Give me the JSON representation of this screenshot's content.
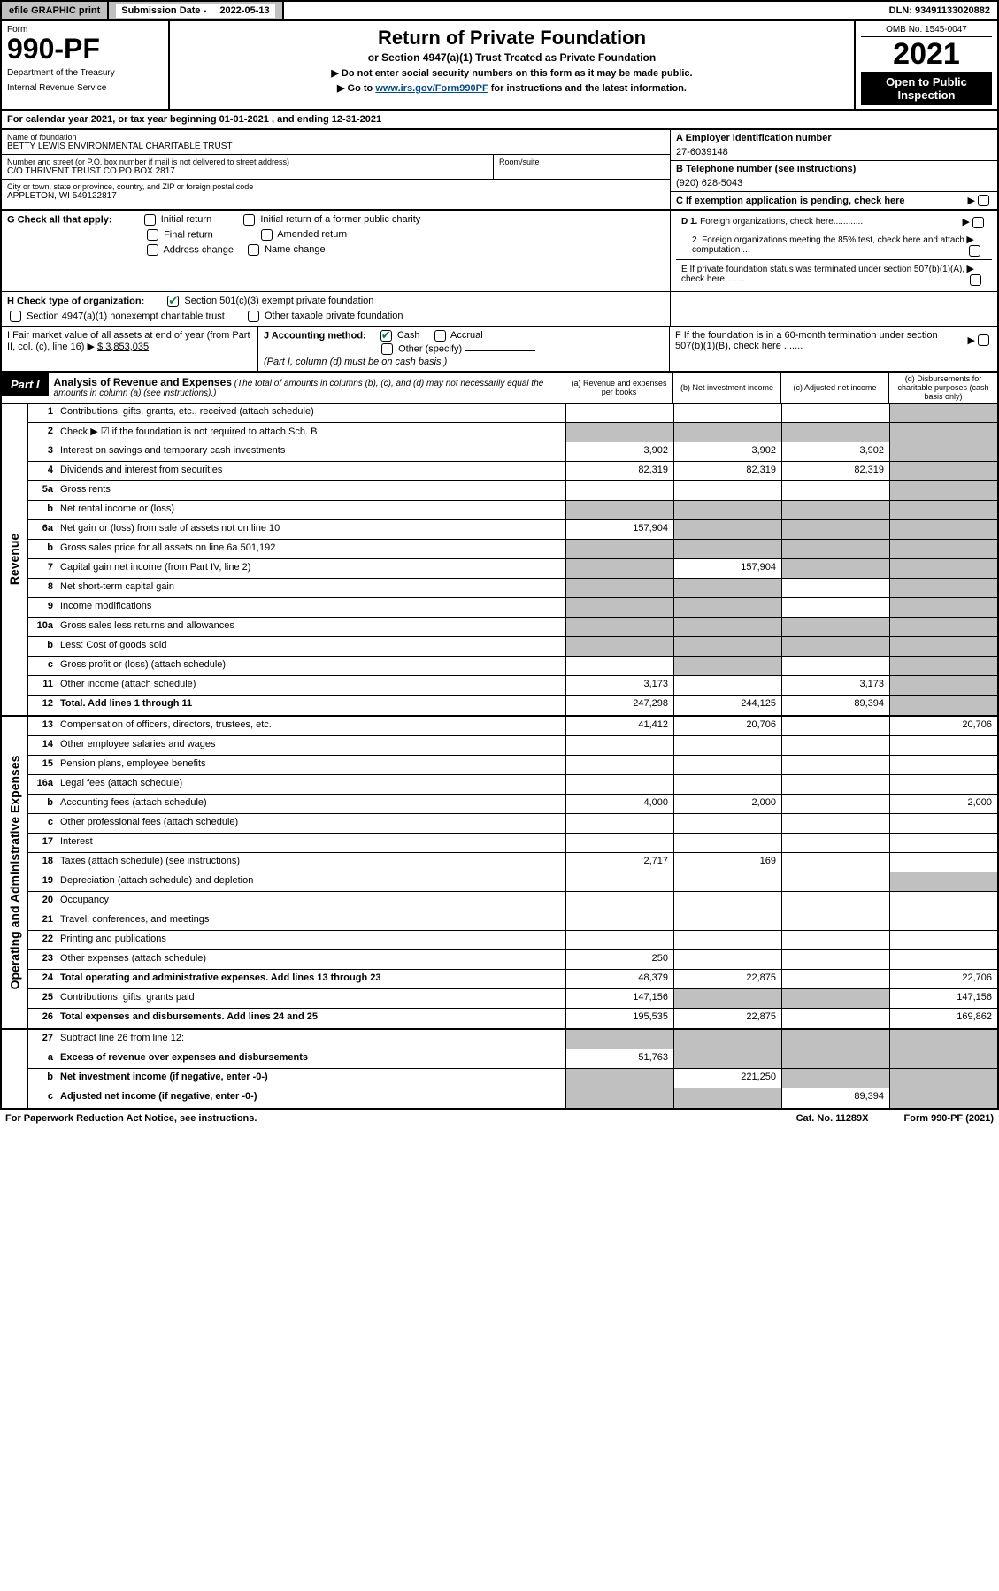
{
  "top_bar": {
    "efile": "efile GRAPHIC print",
    "submission_label": "Submission Date - ",
    "submission_date": "2022-05-13",
    "dln": "DLN: 93491133020882"
  },
  "header": {
    "form_label": "Form",
    "form_number": "990-PF",
    "dept1": "Department of the Treasury",
    "dept2": "Internal Revenue Service",
    "title": "Return of Private Foundation",
    "subtitle": "or Section 4947(a)(1) Trust Treated as Private Foundation",
    "note1": "▶ Do not enter social security numbers on this form as it may be made public.",
    "note2_pre": "▶ Go to ",
    "note2_link": "www.irs.gov/Form990PF",
    "note2_post": " for instructions and the latest information.",
    "omb": "OMB No. 1545-0047",
    "year": "2021",
    "open": "Open to Public Inspection"
  },
  "cal_year": "For calendar year 2021, or tax year beginning 01-01-2021            , and ending 12-31-2021",
  "info": {
    "name_label": "Name of foundation",
    "name": "BETTY LEWIS ENVIRONMENTAL CHARITABLE TRUST",
    "addr_label": "Number and street (or P.O. box number if mail is not delivered to street address)",
    "addr": "C/O THRIVENT TRUST CO PO BOX 2817",
    "room_label": "Room/suite",
    "city_label": "City or town, state or province, country, and ZIP or foreign postal code",
    "city": "APPLETON, WI  549122817",
    "a_label": "A Employer identification number",
    "a_val": "27-6039148",
    "b_label": "B Telephone number (see instructions)",
    "b_val": "(920) 628-5043",
    "c_label": "C If exemption application is pending, check here",
    "d1": "D 1. Foreign organizations, check here............",
    "d2": "2. Foreign organizations meeting the 85% test, check here and attach computation ...",
    "e_label": "E  If private foundation status was terminated under section 507(b)(1)(A), check here .......",
    "f_label": "F  If the foundation is in a 60-month termination under section 507(b)(1)(B), check here ......."
  },
  "g": {
    "label": "G Check all that apply:",
    "initial": "Initial return",
    "initial_former": "Initial return of a former public charity",
    "final": "Final return",
    "amended": "Amended return",
    "addr_change": "Address change",
    "name_change": "Name change"
  },
  "h": {
    "label": "H Check type of organization:",
    "opt1": "Section 501(c)(3) exempt private foundation",
    "opt2": "Section 4947(a)(1) nonexempt charitable trust",
    "opt3": "Other taxable private foundation"
  },
  "i": {
    "label": "I Fair market value of all assets at end of year (from Part II, col. (c), line 16)",
    "val": "$  3,853,035"
  },
  "j": {
    "label": "J Accounting method:",
    "cash": "Cash",
    "accrual": "Accrual",
    "other": "Other (specify)",
    "note": "(Part I, column (d) must be on cash basis.)"
  },
  "part1": {
    "label": "Part I",
    "title": "Analysis of Revenue and Expenses",
    "note": "(The total of amounts in columns (b), (c), and (d) may not necessarily equal the amounts in column (a) (see instructions).)",
    "col_a": "(a)   Revenue and expenses per books",
    "col_b": "(b)   Net investment income",
    "col_c": "(c)   Adjusted net income",
    "col_d": "(d)   Disbursements for charitable purposes (cash basis only)"
  },
  "sections": {
    "revenue": "Revenue",
    "expenses": "Operating and Administrative Expenses"
  },
  "rows": {
    "r1": {
      "num": "1",
      "desc": "Contributions, gifts, grants, etc., received (attach schedule)",
      "a": "",
      "b": "",
      "c": "",
      "d": "",
      "shade": [
        "d"
      ]
    },
    "r2": {
      "num": "2",
      "desc": "Check ▶ ☑ if the foundation is not required to attach Sch. B",
      "a": "",
      "b": "",
      "c": "",
      "d": "",
      "shade": [
        "a",
        "b",
        "c",
        "d"
      ],
      "nob": true
    },
    "r3": {
      "num": "3",
      "desc": "Interest on savings and temporary cash investments",
      "a": "3,902",
      "b": "3,902",
      "c": "3,902",
      "d": "",
      "shade": [
        "d"
      ]
    },
    "r4": {
      "num": "4",
      "desc": "Dividends and interest from securities",
      "a": "82,319",
      "b": "82,319",
      "c": "82,319",
      "d": "",
      "shade": [
        "d"
      ]
    },
    "r5a": {
      "num": "5a",
      "desc": "Gross rents",
      "a": "",
      "b": "",
      "c": "",
      "d": "",
      "shade": [
        "d"
      ]
    },
    "r5b": {
      "num": "b",
      "desc": "Net rental income or (loss)",
      "a": "",
      "b": "",
      "c": "",
      "d": "",
      "shade": [
        "a",
        "b",
        "c",
        "d"
      ]
    },
    "r6a": {
      "num": "6a",
      "desc": "Net gain or (loss) from sale of assets not on line 10",
      "a": "157,904",
      "b": "",
      "c": "",
      "d": "",
      "shade": [
        "b",
        "c",
        "d"
      ]
    },
    "r6b": {
      "num": "b",
      "desc": "Gross sales price for all assets on line 6a          501,192",
      "a": "",
      "b": "",
      "c": "",
      "d": "",
      "shade": [
        "a",
        "b",
        "c",
        "d"
      ]
    },
    "r7": {
      "num": "7",
      "desc": "Capital gain net income (from Part IV, line 2)",
      "a": "",
      "b": "157,904",
      "c": "",
      "d": "",
      "shade": [
        "a",
        "c",
        "d"
      ]
    },
    "r8": {
      "num": "8",
      "desc": "Net short-term capital gain",
      "a": "",
      "b": "",
      "c": "",
      "d": "",
      "shade": [
        "a",
        "b",
        "d"
      ]
    },
    "r9": {
      "num": "9",
      "desc": "Income modifications",
      "a": "",
      "b": "",
      "c": "",
      "d": "",
      "shade": [
        "a",
        "b",
        "d"
      ]
    },
    "r10a": {
      "num": "10a",
      "desc": "Gross sales less returns and allowances",
      "a": "",
      "b": "",
      "c": "",
      "d": "",
      "shade": [
        "a",
        "b",
        "c",
        "d"
      ]
    },
    "r10b": {
      "num": "b",
      "desc": "Less: Cost of goods sold",
      "a": "",
      "b": "",
      "c": "",
      "d": "",
      "shade": [
        "a",
        "b",
        "c",
        "d"
      ]
    },
    "r10c": {
      "num": "c",
      "desc": "Gross profit or (loss) (attach schedule)",
      "a": "",
      "b": "",
      "c": "",
      "d": "",
      "shade": [
        "b",
        "d"
      ]
    },
    "r11": {
      "num": "11",
      "desc": "Other income (attach schedule)",
      "a": "3,173",
      "b": "",
      "c": "3,173",
      "d": "",
      "shade": [
        "d"
      ]
    },
    "r12": {
      "num": "12",
      "desc": "Total. Add lines 1 through 11",
      "a": "247,298",
      "b": "244,125",
      "c": "89,394",
      "d": "",
      "shade": [
        "d"
      ],
      "bold": true
    },
    "r13": {
      "num": "13",
      "desc": "Compensation of officers, directors, trustees, etc.",
      "a": "41,412",
      "b": "20,706",
      "c": "",
      "d": "20,706"
    },
    "r14": {
      "num": "14",
      "desc": "Other employee salaries and wages",
      "a": "",
      "b": "",
      "c": "",
      "d": ""
    },
    "r15": {
      "num": "15",
      "desc": "Pension plans, employee benefits",
      "a": "",
      "b": "",
      "c": "",
      "d": ""
    },
    "r16a": {
      "num": "16a",
      "desc": "Legal fees (attach schedule)",
      "a": "",
      "b": "",
      "c": "",
      "d": ""
    },
    "r16b": {
      "num": "b",
      "desc": "Accounting fees (attach schedule)",
      "a": "4,000",
      "b": "2,000",
      "c": "",
      "d": "2,000"
    },
    "r16c": {
      "num": "c",
      "desc": "Other professional fees (attach schedule)",
      "a": "",
      "b": "",
      "c": "",
      "d": ""
    },
    "r17": {
      "num": "17",
      "desc": "Interest",
      "a": "",
      "b": "",
      "c": "",
      "d": ""
    },
    "r18": {
      "num": "18",
      "desc": "Taxes (attach schedule) (see instructions)",
      "a": "2,717",
      "b": "169",
      "c": "",
      "d": ""
    },
    "r19": {
      "num": "19",
      "desc": "Depreciation (attach schedule) and depletion",
      "a": "",
      "b": "",
      "c": "",
      "d": "",
      "shade": [
        "d"
      ]
    },
    "r20": {
      "num": "20",
      "desc": "Occupancy",
      "a": "",
      "b": "",
      "c": "",
      "d": ""
    },
    "r21": {
      "num": "21",
      "desc": "Travel, conferences, and meetings",
      "a": "",
      "b": "",
      "c": "",
      "d": ""
    },
    "r22": {
      "num": "22",
      "desc": "Printing and publications",
      "a": "",
      "b": "",
      "c": "",
      "d": ""
    },
    "r23": {
      "num": "23",
      "desc": "Other expenses (attach schedule)",
      "a": "250",
      "b": "",
      "c": "",
      "d": ""
    },
    "r24": {
      "num": "24",
      "desc": "Total operating and administrative expenses. Add lines 13 through 23",
      "a": "48,379",
      "b": "22,875",
      "c": "",
      "d": "22,706",
      "bold": true
    },
    "r25": {
      "num": "25",
      "desc": "Contributions, gifts, grants paid",
      "a": "147,156",
      "b": "",
      "c": "",
      "d": "147,156",
      "shade": [
        "b",
        "c"
      ]
    },
    "r26": {
      "num": "26",
      "desc": "Total expenses and disbursements. Add lines 24 and 25",
      "a": "195,535",
      "b": "22,875",
      "c": "",
      "d": "169,862",
      "bold": true
    },
    "r27": {
      "num": "27",
      "desc": "Subtract line 26 from line 12:",
      "a": "",
      "b": "",
      "c": "",
      "d": "",
      "shade": [
        "a",
        "b",
        "c",
        "d"
      ]
    },
    "r27a": {
      "num": "a",
      "desc": "Excess of revenue over expenses and disbursements",
      "a": "51,763",
      "b": "",
      "c": "",
      "d": "",
      "shade": [
        "b",
        "c",
        "d"
      ],
      "bold": true
    },
    "r27b": {
      "num": "b",
      "desc": "Net investment income (if negative, enter -0-)",
      "a": "",
      "b": "221,250",
      "c": "",
      "d": "",
      "shade": [
        "a",
        "c",
        "d"
      ],
      "bold": true
    },
    "r27c": {
      "num": "c",
      "desc": "Adjusted net income (if negative, enter -0-)",
      "a": "",
      "b": "",
      "c": "89,394",
      "d": "",
      "shade": [
        "a",
        "b",
        "d"
      ],
      "bold": true
    }
  },
  "footer": {
    "left": "For Paperwork Reduction Act Notice, see instructions.",
    "mid": "Cat. No. 11289X",
    "right": "Form 990-PF (2021)"
  },
  "colors": {
    "shaded": "#c0c0c0",
    "link": "#004b8d",
    "check": "#0a7a3a"
  }
}
